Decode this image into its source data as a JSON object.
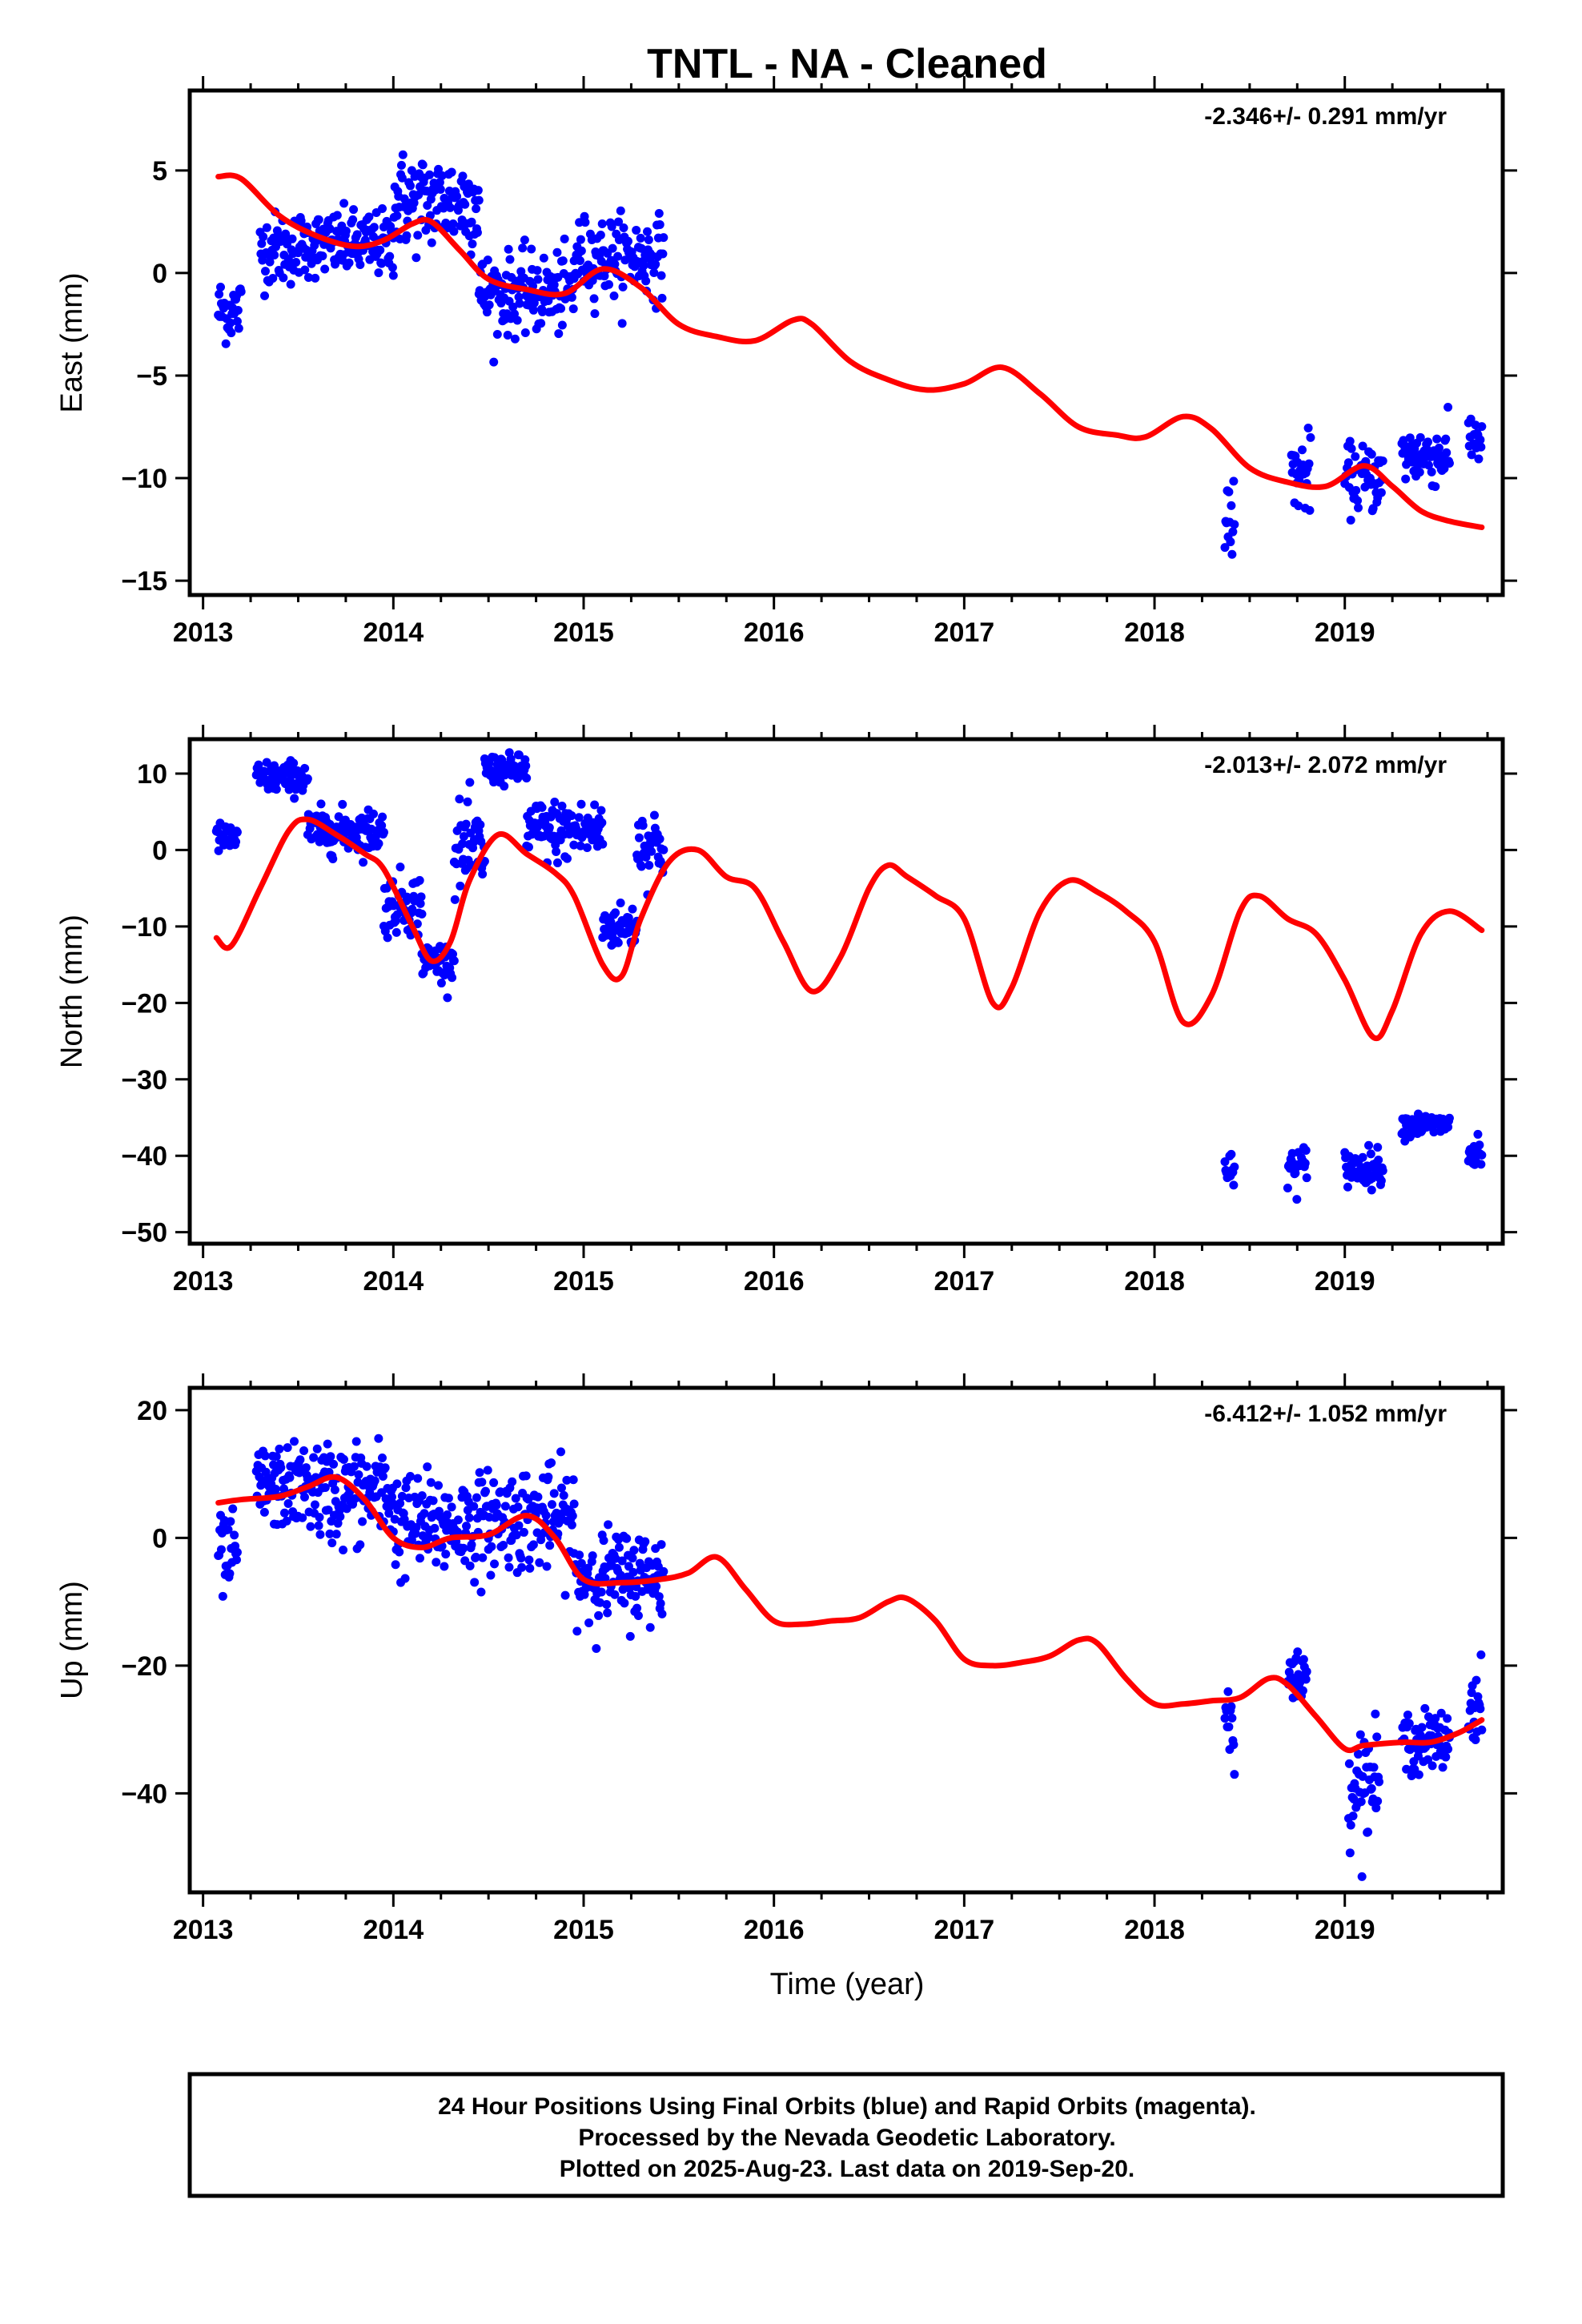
{
  "title": "TNTL  - NA - Cleaned",
  "xlabel": "Time (year)",
  "footer": {
    "line1": "24 Hour Positions Using Final Orbits (blue) and Rapid Orbits (magenta).",
    "line2": "Processed by the Nevada Geodetic Laboratory.",
    "line3": "Plotted on 2025-Aug-23. Last data on 2019-Sep-20."
  },
  "colors": {
    "data": "#0000ff",
    "model": "#ff0000",
    "axes": "#000000"
  },
  "chart_data": [
    {
      "type": "scatter",
      "ylabel": "East (mm)",
      "velocity": "-2.346+/- 0.291 mm/yr",
      "xlim": [
        2012.93,
        2019.83
      ],
      "ylim": [
        -15.7,
        8.9
      ],
      "xticks": [
        2013,
        2014,
        2015,
        2016,
        2017,
        2018,
        2019
      ],
      "yticks": [
        5,
        0,
        -5,
        -10,
        -15
      ],
      "ytick_labels": [
        "5",
        "0",
        "−5",
        "−10",
        "−15"
      ],
      "model": {
        "x": [
          2013.08,
          2013.2,
          2013.4,
          2013.6,
          2013.8,
          2013.95,
          2014.1,
          2014.2,
          2014.35,
          2014.5,
          2014.7,
          2014.9,
          2015.1,
          2015.3,
          2015.5,
          2015.7,
          2015.9,
          2016.1,
          2016.2,
          2016.4,
          2016.6,
          2016.8,
          2017.0,
          2017.2,
          2017.4,
          2017.6,
          2017.8,
          2017.95,
          2018.15,
          2018.3,
          2018.5,
          2018.7,
          2018.9,
          2019.1,
          2019.25,
          2019.4,
          2019.55,
          2019.72
        ],
        "y": [
          4.7,
          4.6,
          2.8,
          1.8,
          1.3,
          1.6,
          2.4,
          2.5,
          1.1,
          -0.3,
          -0.8,
          -1.0,
          0.2,
          -0.7,
          -2.5,
          -3.1,
          -3.3,
          -2.3,
          -2.5,
          -4.3,
          -5.2,
          -5.7,
          -5.4,
          -4.6,
          -5.9,
          -7.5,
          -7.9,
          -8.0,
          -7.0,
          -7.6,
          -9.5,
          -10.2,
          -10.4,
          -9.4,
          -10.4,
          -11.6,
          -12.1,
          -12.4
        ]
      },
      "segments": [
        {
          "x0": 2013.08,
          "x1": 2013.2,
          "trend": -1.8,
          "spread": 1.0
        },
        {
          "x0": 2013.3,
          "x1": 2013.5,
          "trend": 1.2,
          "spread": 1.1
        },
        {
          "x0": 2013.5,
          "x1": 2014.0,
          "trend": 1.4,
          "spread": 1.0
        },
        {
          "x0": 2014.0,
          "x1": 2014.45,
          "trend": 3.5,
          "spread": 1.5
        },
        {
          "x0": 2014.45,
          "x1": 2014.95,
          "trend": -1.0,
          "spread": 1.2
        },
        {
          "x0": 2014.95,
          "x1": 2015.42,
          "trend": 0.8,
          "spread": 1.2
        },
        {
          "x0": 2018.37,
          "x1": 2018.42,
          "trend": -12.0,
          "spread": 1.2
        },
        {
          "x0": 2018.72,
          "x1": 2018.82,
          "trend": -9.8,
          "spread": 1.2
        },
        {
          "x0": 2019.0,
          "x1": 2019.2,
          "trend": -10.0,
          "spread": 1.0
        },
        {
          "x0": 2019.3,
          "x1": 2019.55,
          "trend": -8.9,
          "spread": 0.9
        },
        {
          "x0": 2019.65,
          "x1": 2019.72,
          "trend": -8.0,
          "spread": 0.9
        }
      ]
    },
    {
      "type": "scatter",
      "ylabel": "North (mm)",
      "velocity": "-2.013+/- 2.072 mm/yr",
      "xlim": [
        2012.93,
        2019.83
      ],
      "ylim": [
        -51.5,
        14.5
      ],
      "xticks": [
        2013,
        2014,
        2015,
        2016,
        2017,
        2018,
        2019
      ],
      "yticks": [
        10,
        0,
        -10,
        -20,
        -30,
        -40,
        -50
      ],
      "ytick_labels": [
        "10",
        "0",
        "−10",
        "−20",
        "−30",
        "−40",
        "−50"
      ],
      "model": {
        "x": [
          2013.07,
          2013.15,
          2013.3,
          2013.45,
          2013.55,
          2013.7,
          2013.85,
          2013.95,
          2014.1,
          2014.2,
          2014.3,
          2014.4,
          2014.55,
          2014.7,
          2014.85,
          2014.95,
          2015.1,
          2015.2,
          2015.3,
          2015.45,
          2015.6,
          2015.75,
          2015.9,
          2016.05,
          2016.2,
          2016.35,
          2016.5,
          2016.6,
          2016.7,
          2016.85,
          2017.0,
          2017.15,
          2017.25,
          2017.4,
          2017.55,
          2017.7,
          2017.85,
          2018.0,
          2018.15,
          2018.3,
          2018.45,
          2018.55,
          2018.7,
          2018.85,
          2019.0,
          2019.15,
          2019.25,
          2019.4,
          2019.55,
          2019.72
        ],
        "y": [
          -11.5,
          -12.5,
          -5.0,
          2.5,
          4.0,
          2.0,
          -0.5,
          -2.5,
          -10.0,
          -14.5,
          -12.0,
          -4.0,
          2.0,
          -0.5,
          -3.0,
          -6.0,
          -15.0,
          -16.5,
          -9.0,
          -1.5,
          0.0,
          -3.5,
          -5.0,
          -12.0,
          -18.5,
          -14.0,
          -5.0,
          -2.0,
          -3.5,
          -6.0,
          -9.0,
          -20.0,
          -18.0,
          -8.0,
          -4.0,
          -5.5,
          -8.0,
          -12.0,
          -22.5,
          -19.0,
          -8.0,
          -6.0,
          -9.0,
          -11.0,
          -17.0,
          -24.5,
          -21.0,
          -11.0,
          -8.0,
          -10.5
        ]
      },
      "segments": [
        {
          "x0": 2013.07,
          "x1": 2013.18,
          "trend": 1.5,
          "spread": 1.2
        },
        {
          "x0": 2013.28,
          "x1": 2013.55,
          "trend": 9.5,
          "spread": 1.3
        },
        {
          "x0": 2013.55,
          "x1": 2013.95,
          "trend": 2.5,
          "spread": 1.8
        },
        {
          "x0": 2013.95,
          "x1": 2014.15,
          "trend": -7.0,
          "spread": 2.5
        },
        {
          "x0": 2014.15,
          "x1": 2014.32,
          "trend": -14.5,
          "spread": 1.5
        },
        {
          "x0": 2014.32,
          "x1": 2014.48,
          "trend": 0.0,
          "spread": 3.5
        },
        {
          "x0": 2014.48,
          "x1": 2014.7,
          "trend": 10.5,
          "spread": 1.2
        },
        {
          "x0": 2014.7,
          "x1": 2015.1,
          "trend": 2.5,
          "spread": 2.5
        },
        {
          "x0": 2015.1,
          "x1": 2015.28,
          "trend": -10.0,
          "spread": 1.8
        },
        {
          "x0": 2015.28,
          "x1": 2015.42,
          "trend": 1.0,
          "spread": 3.0
        },
        {
          "x0": 2018.37,
          "x1": 2018.42,
          "trend": -42.5,
          "spread": 1.8
        },
        {
          "x0": 2018.7,
          "x1": 2018.8,
          "trend": -41.5,
          "spread": 1.8
        },
        {
          "x0": 2019.0,
          "x1": 2019.2,
          "trend": -41.5,
          "spread": 1.5
        },
        {
          "x0": 2019.3,
          "x1": 2019.55,
          "trend": -36.0,
          "spread": 1.0
        },
        {
          "x0": 2019.65,
          "x1": 2019.72,
          "trend": -40.0,
          "spread": 1.5
        }
      ]
    },
    {
      "type": "scatter",
      "ylabel": "Up (mm)",
      "velocity": "-6.412+/- 1.052 mm/yr",
      "xlim": [
        2012.93,
        2019.83
      ],
      "ylim": [
        -55.5,
        23.5
      ],
      "xticks": [
        2013,
        2014,
        2015,
        2016,
        2017,
        2018,
        2019
      ],
      "yticks": [
        20,
        0,
        -20,
        -40
      ],
      "ytick_labels": [
        "20",
        "0",
        "−20",
        "−40"
      ],
      "model": {
        "x": [
          2013.08,
          2013.2,
          2013.4,
          2013.55,
          2013.7,
          2013.85,
          2014.0,
          2014.15,
          2014.3,
          2014.5,
          2014.7,
          2014.85,
          2015.0,
          2015.2,
          2015.4,
          2015.55,
          2015.7,
          2015.85,
          2016.0,
          2016.15,
          2016.3,
          2016.45,
          2016.6,
          2016.7,
          2016.85,
          2017.0,
          2017.15,
          2017.3,
          2017.45,
          2017.6,
          2017.7,
          2017.85,
          2018.0,
          2018.15,
          2018.3,
          2018.45,
          2018.6,
          2018.7,
          2018.85,
          2019.0,
          2019.1,
          2019.3,
          2019.45,
          2019.6,
          2019.72
        ],
        "y": [
          5.5,
          6.0,
          6.5,
          8.0,
          9.5,
          6.0,
          0.0,
          -1.5,
          0.0,
          0.5,
          3.5,
          0.0,
          -6.5,
          -7.0,
          -6.5,
          -5.5,
          -3.0,
          -8.0,
          -13.0,
          -13.5,
          -13.0,
          -12.5,
          -10.0,
          -9.5,
          -13.0,
          -19.0,
          -20.0,
          -19.5,
          -18.5,
          -16.0,
          -16.5,
          -22.0,
          -26.0,
          -26.0,
          -25.5,
          -25.0,
          -22.0,
          -23.0,
          -28.0,
          -33.0,
          -32.5,
          -32.0,
          -32.0,
          -30.5,
          -28.5
        ]
      },
      "segments": [
        {
          "x0": 2013.08,
          "x1": 2013.18,
          "trend": -3.0,
          "spread": 4.0
        },
        {
          "x0": 2013.28,
          "x1": 2013.6,
          "trend": 8.0,
          "spread": 4.0
        },
        {
          "x0": 2013.6,
          "x1": 2014.0,
          "trend": 7.0,
          "spread": 5.0
        },
        {
          "x0": 2014.0,
          "x1": 2014.5,
          "trend": 2.0,
          "spread": 5.0
        },
        {
          "x0": 2014.5,
          "x1": 2014.95,
          "trend": 3.0,
          "spread": 5.0
        },
        {
          "x0": 2014.95,
          "x1": 2015.42,
          "trend": -6.0,
          "spread": 4.5
        },
        {
          "x0": 2018.37,
          "x1": 2018.42,
          "trend": -28.0,
          "spread": 4.0
        },
        {
          "x0": 2018.7,
          "x1": 2018.8,
          "trend": -22.0,
          "spread": 2.5
        },
        {
          "x0": 2019.02,
          "x1": 2019.18,
          "trend": -38.0,
          "spread": 5.0
        },
        {
          "x0": 2019.3,
          "x1": 2019.55,
          "trend": -32.0,
          "spread": 3.0
        },
        {
          "x0": 2019.65,
          "x1": 2019.72,
          "trend": -26.0,
          "spread": 4.0
        }
      ]
    }
  ]
}
